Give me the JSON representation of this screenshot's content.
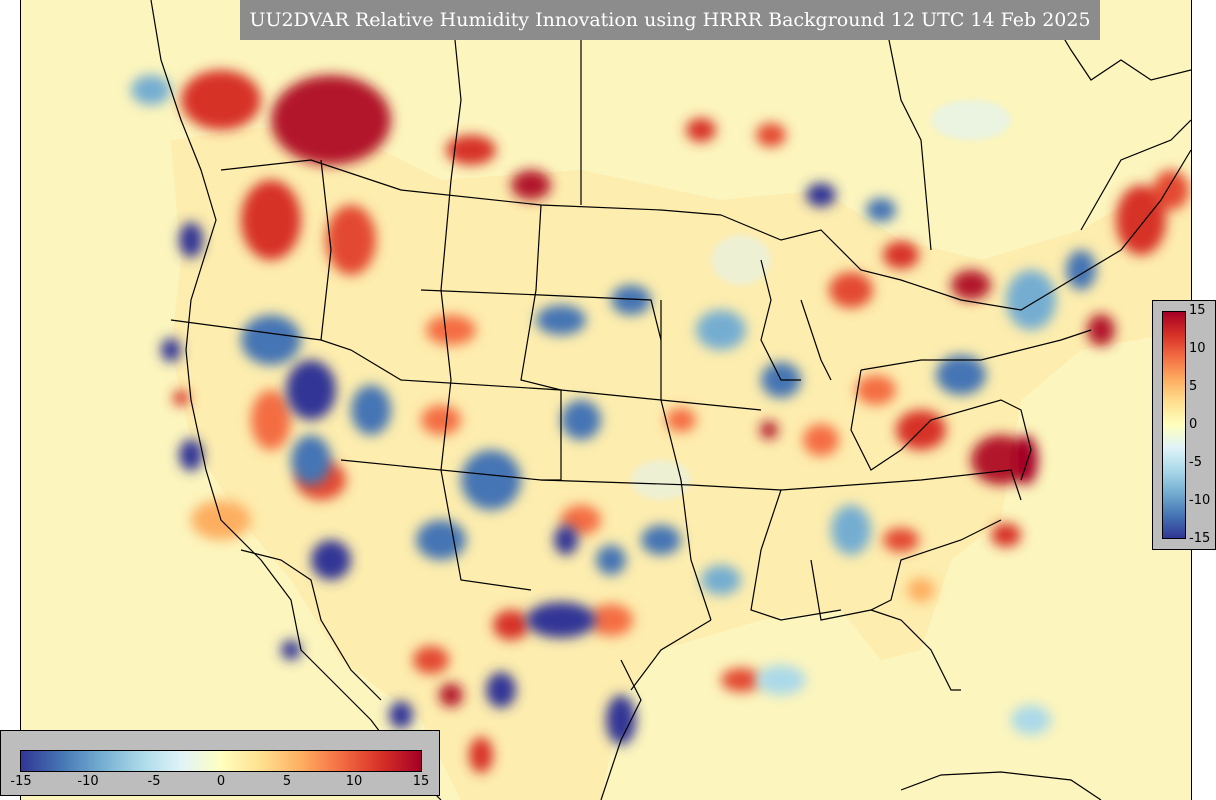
{
  "title": "UU2DVAR Relative Humidity Innovation using HRRR Background 12 UTC 14 Feb 2025",
  "colorbar": {
    "min": -15,
    "max": 15,
    "right_ticks": [
      "15",
      "10",
      "5",
      "0",
      "-5",
      "-10",
      "-15"
    ],
    "bottom_ticks": [
      "-15",
      "-10",
      "-5",
      "0",
      "5",
      "10",
      "15"
    ],
    "colors": [
      "#313695",
      "#4575b4",
      "#74add1",
      "#abd9e9",
      "#e0f3f8",
      "#ffffbf",
      "#fee090",
      "#fdae61",
      "#f46d43",
      "#d73027",
      "#a50026"
    ]
  },
  "map": {
    "background_color": "#fcf5bd",
    "region": "Continental United States"
  }
}
